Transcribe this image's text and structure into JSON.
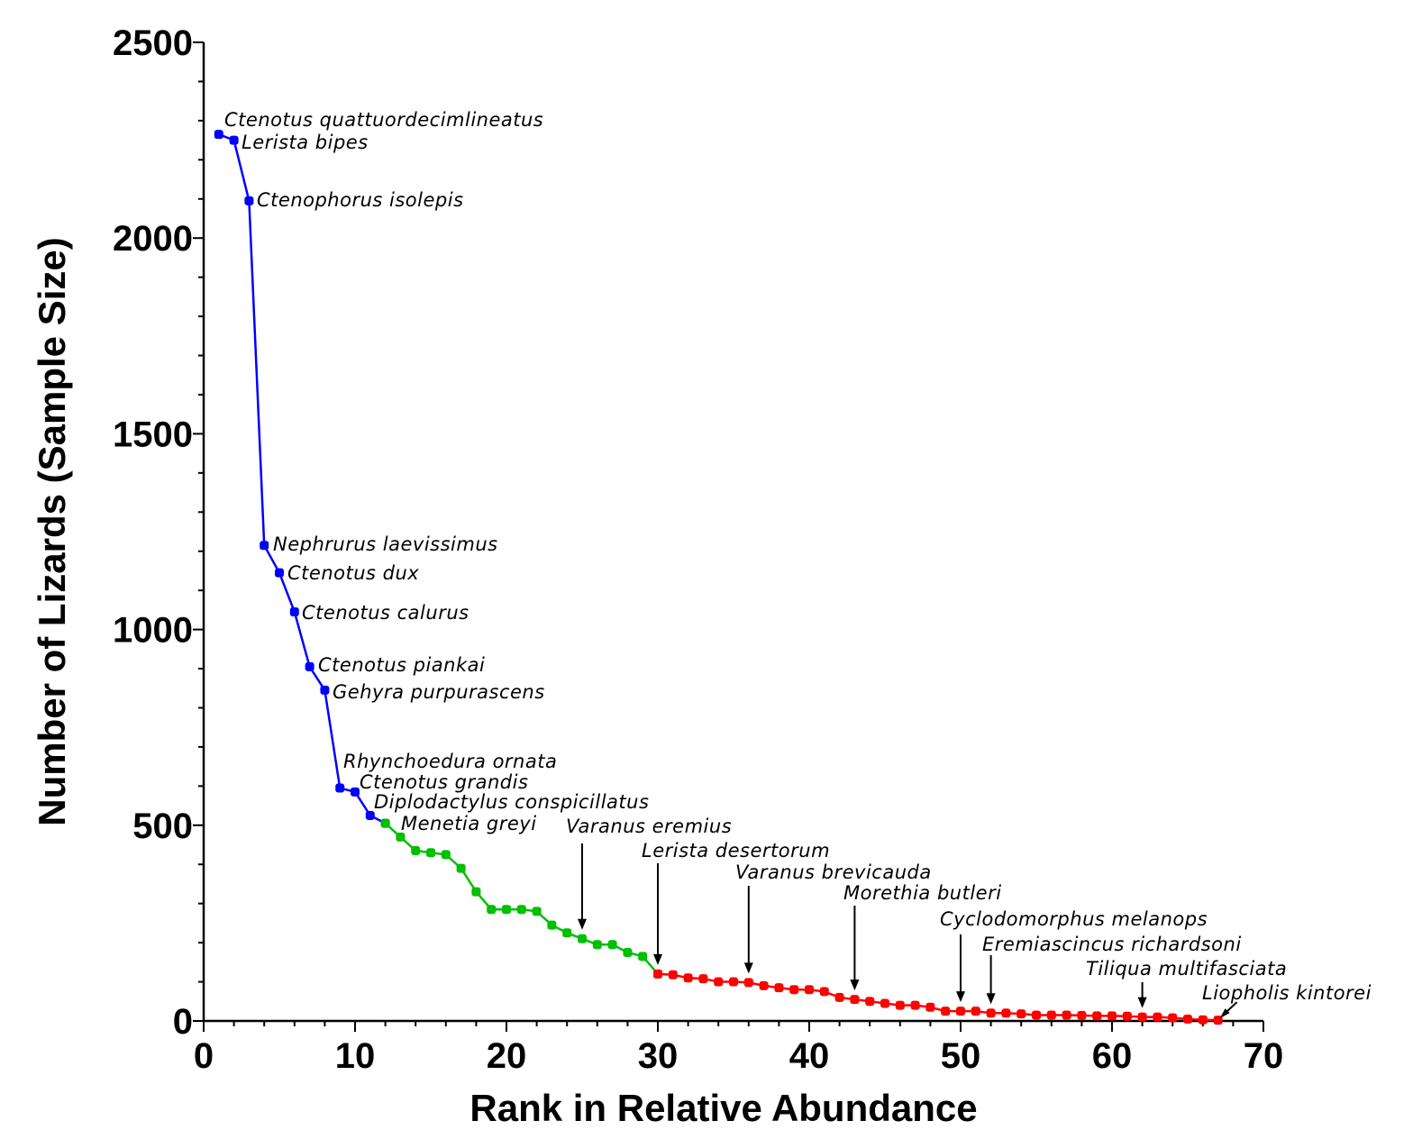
{
  "chart_data": {
    "type": "line",
    "xlabel": "Rank in Relative Abundance",
    "ylabel": "Number of Lizards (Sample Size)",
    "xlim": [
      0,
      70
    ],
    "ylim": [
      0,
      2500
    ],
    "x_ticks": [
      "0",
      "10",
      "20",
      "30",
      "40",
      "50",
      "60",
      "70"
    ],
    "y_ticks": [
      "0",
      "500",
      "1000",
      "1500",
      "2000",
      "2500"
    ],
    "grid": false,
    "legend": "none",
    "series": [
      {
        "color": "#0000ff",
        "x": [
          1,
          2,
          3,
          4,
          5,
          6,
          7,
          8,
          9,
          10,
          11,
          12
        ],
        "y": [
          2265,
          2250,
          2095,
          1215,
          1145,
          1045,
          905,
          845,
          595,
          585,
          525,
          505
        ]
      },
      {
        "color": "#00c000",
        "x": [
          12,
          13,
          14,
          15,
          16,
          17,
          18,
          19,
          20,
          21,
          22,
          23,
          24,
          25,
          26,
          27,
          28,
          29,
          30
        ],
        "y": [
          505,
          470,
          435,
          430,
          425,
          390,
          330,
          285,
          285,
          285,
          280,
          245,
          225,
          210,
          195,
          195,
          175,
          165,
          120
        ]
      },
      {
        "color": "#ff0000",
        "x": [
          30,
          31,
          32,
          33,
          34,
          35,
          36,
          37,
          38,
          39,
          40,
          41,
          42,
          43,
          44,
          45,
          46,
          47,
          48,
          49,
          50,
          51,
          52,
          53,
          54,
          55,
          56,
          57,
          58,
          59,
          60,
          61,
          62,
          63,
          64,
          65,
          66,
          67
        ],
        "y": [
          120,
          118,
          110,
          108,
          100,
          100,
          98,
          90,
          85,
          80,
          80,
          75,
          60,
          55,
          50,
          45,
          40,
          40,
          35,
          25,
          25,
          25,
          20,
          20,
          18,
          15,
          15,
          15,
          14,
          13,
          13,
          12,
          10,
          10,
          8,
          5,
          3,
          2
        ]
      }
    ],
    "annotations": [
      {
        "text": "Ctenotus quattuordecimlineatus",
        "rank": 1
      },
      {
        "text": "Lerista bipes",
        "rank": 2
      },
      {
        "text": "Ctenophorus isolepis",
        "rank": 3
      },
      {
        "text": "Nephrurus laevissimus",
        "rank": 4
      },
      {
        "text": "Ctenotus dux",
        "rank": 5
      },
      {
        "text": "Ctenotus calurus",
        "rank": 6
      },
      {
        "text": "Ctenotus piankai",
        "rank": 7
      },
      {
        "text": "Gehyra purpurascens",
        "rank": 8
      },
      {
        "text": "Rhynchoedura ornata",
        "rank": 9
      },
      {
        "text": "Ctenotus grandis",
        "rank": 10
      },
      {
        "text": "Diplodactylus conspicillatus",
        "rank": 11
      },
      {
        "text": "Menetia greyi",
        "rank": 12
      },
      {
        "text": "Varanus eremius",
        "rank": 25
      },
      {
        "text": "Lerista desertorum",
        "rank": 30
      },
      {
        "text": "Varanus brevicauda",
        "rank": 36
      },
      {
        "text": "Morethia butleri",
        "rank": 43
      },
      {
        "text": "Cyclodomorphus melanops",
        "rank": 50
      },
      {
        "text": "Eremiascincus richardsoni",
        "rank": 52
      },
      {
        "text": "Tiliqua multifasciata",
        "rank": 62
      },
      {
        "text": "Liopholis kintorei",
        "rank": 67
      }
    ]
  }
}
